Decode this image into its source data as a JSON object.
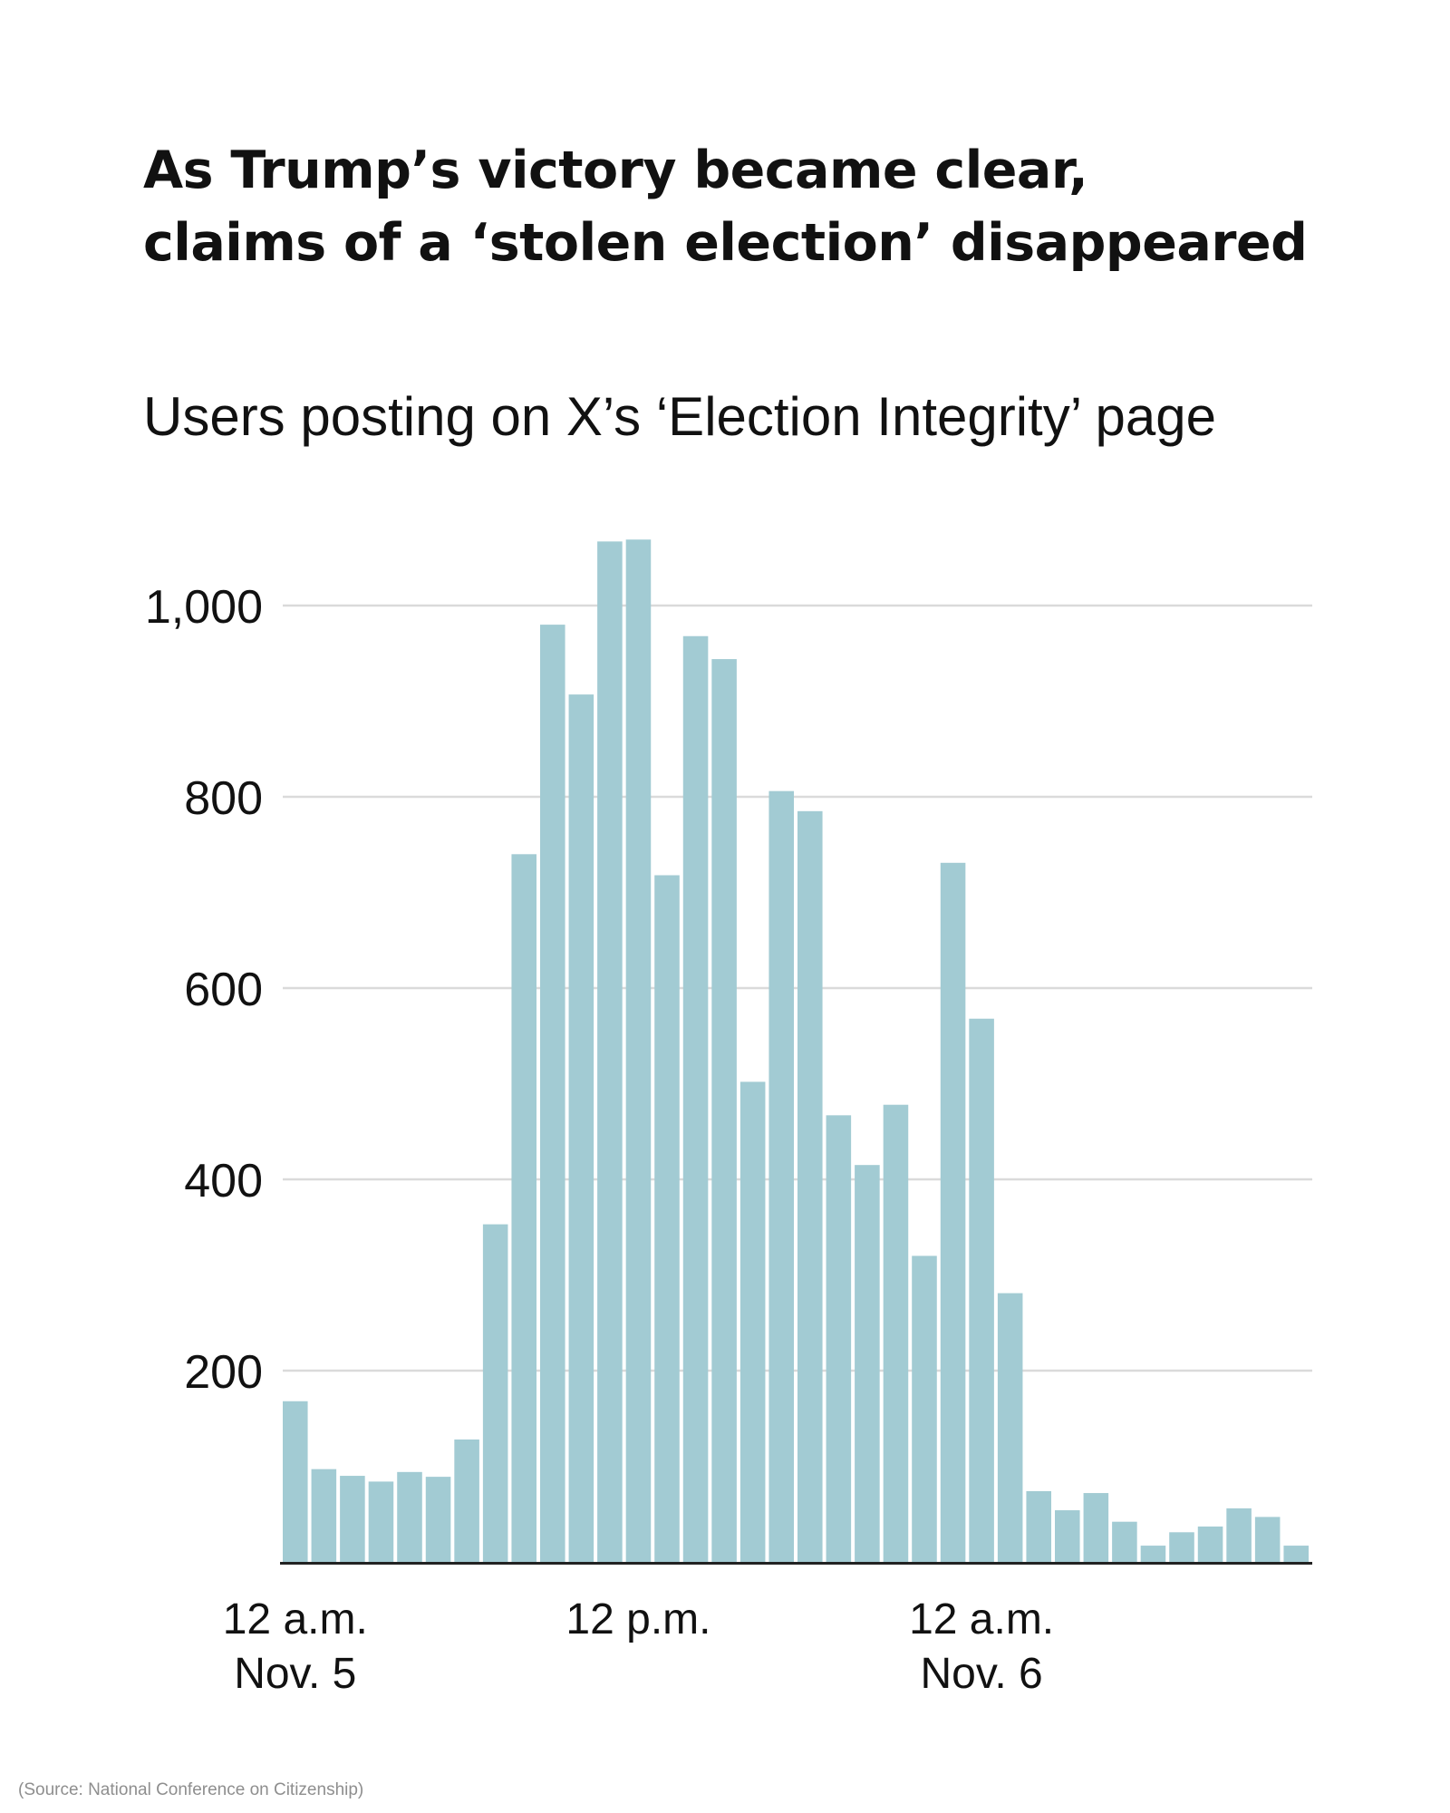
{
  "title_lines": [
    "As Trump’s victory became clear,",
    "claims of a ‘stolen election’ disappeared"
  ],
  "subtitle": "Users posting on X’s ‘Election Integrity’ page",
  "source": "(Source: National Conference on Citizenship)",
  "colors": {
    "bar": "#a2cbd3",
    "grid": "#dadada",
    "axis": "#222222",
    "text": "#111111"
  },
  "chart_data": {
    "type": "bar",
    "title": "As Trump’s victory became clear, claims of a ‘stolen election’ disappeared",
    "subtitle": "Users posting on X’s ‘Election Integrity’ page",
    "categories": [
      "Nov. 5 12 a.m.",
      "Nov. 5 1 a.m.",
      "Nov. 5 2 a.m.",
      "Nov. 5 3 a.m.",
      "Nov. 5 4 a.m.",
      "Nov. 5 5 a.m.",
      "Nov. 5 6 a.m.",
      "Nov. 5 7 a.m.",
      "Nov. 5 8 a.m.",
      "Nov. 5 9 a.m.",
      "Nov. 5 10 a.m.",
      "Nov. 5 11 a.m.",
      "Nov. 5 12 p.m.",
      "Nov. 5 1 p.m.",
      "Nov. 5 2 p.m.",
      "Nov. 5 3 p.m.",
      "Nov. 5 4 p.m.",
      "Nov. 5 5 p.m.",
      "Nov. 5 6 p.m.",
      "Nov. 5 7 p.m.",
      "Nov. 5 8 p.m.",
      "Nov. 5 9 p.m.",
      "Nov. 5 10 p.m.",
      "Nov. 5 11 p.m.",
      "Nov. 6 12 a.m.",
      "Nov. 6 1 a.m.",
      "Nov. 6 2 a.m.",
      "Nov. 6 3 a.m.",
      "Nov. 6 4 a.m.",
      "Nov. 6 5 a.m.",
      "Nov. 6 6 a.m.",
      "Nov. 6 7 a.m.",
      "Nov. 6 8 a.m.",
      "Nov. 6 9 a.m.",
      "Nov. 6 10 a.m.",
      "Nov. 6 11 a.m."
    ],
    "values": [
      168,
      97,
      90,
      84,
      94,
      89,
      128,
      353,
      740,
      980,
      907,
      1067,
      1069,
      718,
      968,
      944,
      502,
      806,
      785,
      467,
      415,
      478,
      320,
      731,
      568,
      281,
      74,
      54,
      72,
      42,
      17,
      31,
      37,
      56,
      47,
      17
    ],
    "ylim": [
      0,
      1000
    ],
    "yticks": [
      200,
      400,
      600,
      800,
      1000
    ],
    "ytick_labels": [
      "200",
      "400",
      "600",
      "800",
      "1,000"
    ],
    "xticks": [
      {
        "index": 0,
        "lines": [
          "12 a.m.",
          "Nov. 5"
        ]
      },
      {
        "index": 12,
        "lines": [
          "12 p.m."
        ]
      },
      {
        "index": 24,
        "lines": [
          "12 a.m.",
          "Nov. 6"
        ]
      }
    ],
    "grid": true,
    "legend": "none"
  }
}
